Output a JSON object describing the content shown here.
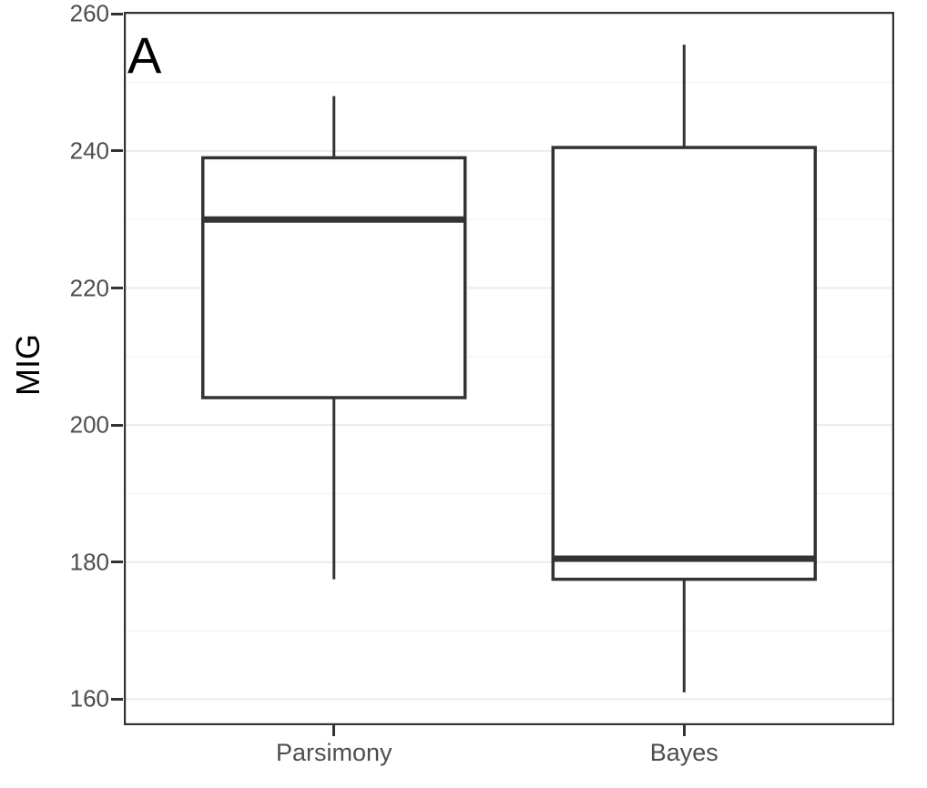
{
  "chart_data": {
    "type": "boxplot",
    "panel_label": "A",
    "title": "",
    "xlabel": "",
    "ylabel": "MIG",
    "categories": [
      "Parsimony",
      "Bayes"
    ],
    "series": [
      {
        "name": "Parsimony",
        "whisker_low": 177.5,
        "q1": 204,
        "median": 230,
        "q3": 239,
        "whisker_high": 248
      },
      {
        "name": "Bayes",
        "whisker_low": 161,
        "q1": 177.5,
        "median": 180.5,
        "q3": 240.5,
        "whisker_high": 255.5
      }
    ],
    "outliers": [],
    "ylim": [
      156.2,
      260.3
    ],
    "yticks": [
      260,
      240,
      220,
      200,
      180,
      160
    ],
    "yticks_minor": [
      250,
      230,
      210,
      190,
      170
    ],
    "grid": "major+minor horizontal",
    "legend": "none",
    "colors": {
      "box_stroke": "#333333",
      "box_fill": "#ffffff",
      "panel_border": "#333333",
      "grid_major": "#ebebeb",
      "grid_minor": "#f5f5f5",
      "tick_label": "#4d4d4d",
      "axis_title": "#000000",
      "background": "#ffffff"
    }
  }
}
